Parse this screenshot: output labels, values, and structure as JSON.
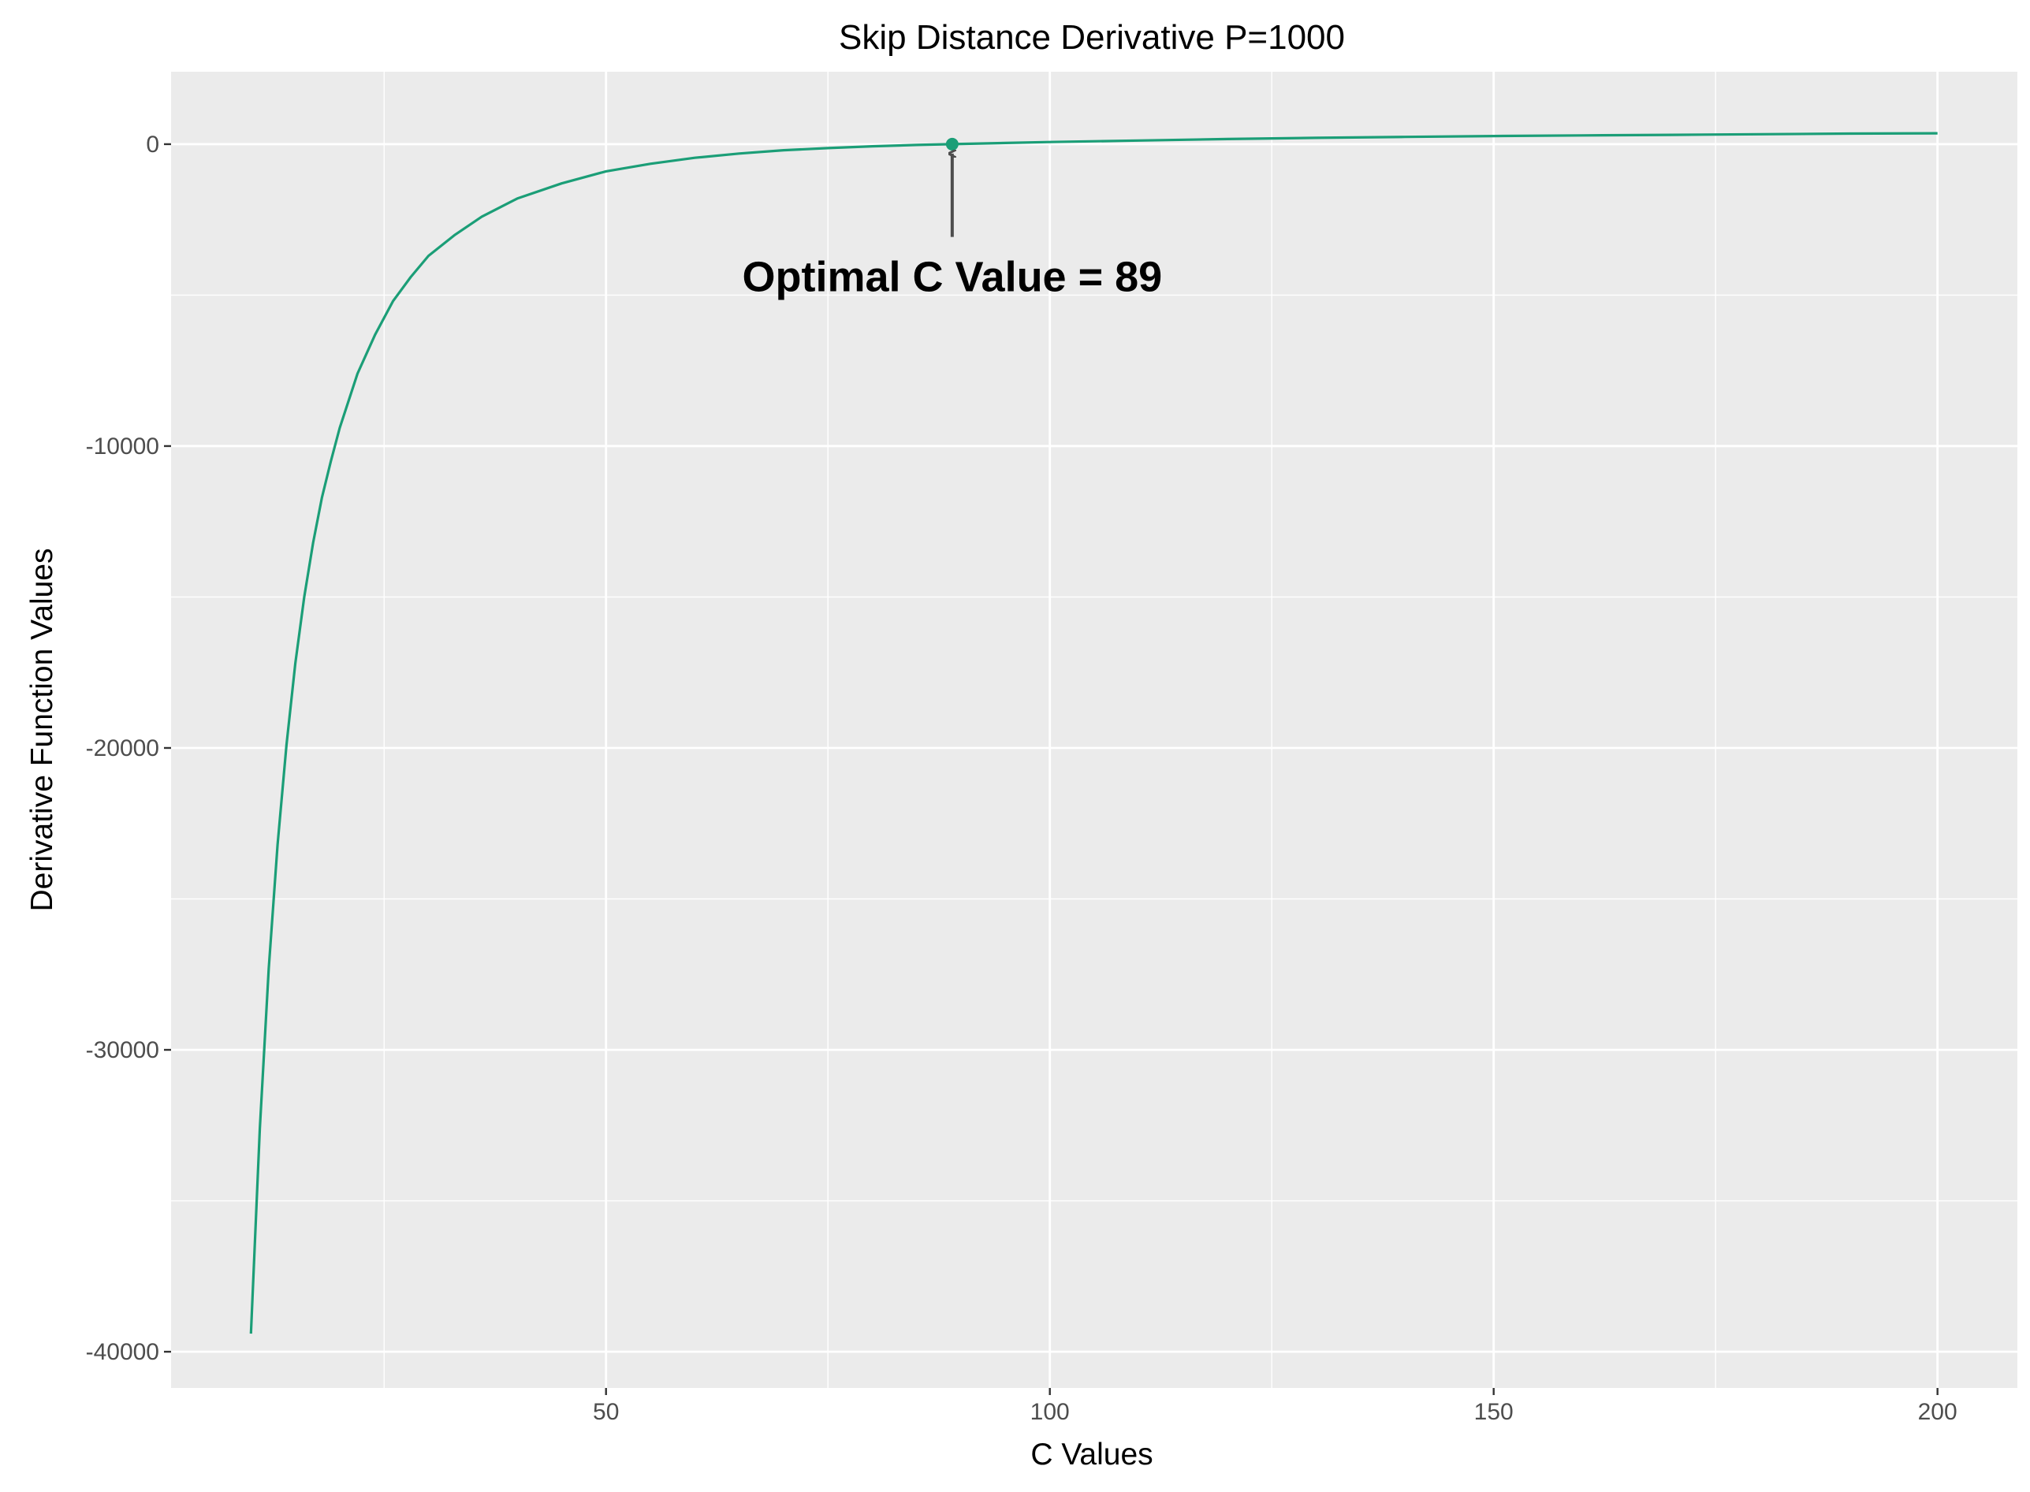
{
  "chart_data": {
    "type": "line",
    "title": "Skip Distance Derivative P=1000",
    "xlabel": "C Values",
    "ylabel": "Derivative Function Values",
    "xlim": [
      1,
      209
    ],
    "ylim": [
      -41200,
      2400
    ],
    "x_ticks": [
      50,
      100,
      150,
      200
    ],
    "y_ticks": [
      0,
      -10000,
      -20000,
      -30000,
      -40000
    ],
    "x_tick_labels": [
      "50",
      "100",
      "150",
      "200"
    ],
    "y_tick_labels": [
      "0",
      "-10000",
      "-20000",
      "-30000",
      "-40000"
    ],
    "grid": true,
    "legend": "none",
    "colors": {
      "line": "#1b9e77",
      "panel": "#ebebeb",
      "grid": "#ffffff",
      "arrow": "#4d4d4d"
    },
    "series": [
      {
        "x": [
          10,
          11,
          12,
          13,
          14,
          15,
          16,
          17,
          18,
          19,
          20,
          22,
          24,
          26,
          28,
          30,
          33,
          36,
          40,
          45,
          50,
          55,
          60,
          65,
          70,
          75,
          80,
          85,
          89,
          95,
          100,
          110,
          120,
          130,
          140,
          150,
          160,
          170,
          180,
          190,
          200
        ],
        "y": [
          -39400,
          -32600,
          -27300,
          -23200,
          -19900,
          -17200,
          -15000,
          -13200,
          -11700,
          -10500,
          -9400,
          -7600,
          -6300,
          -5200,
          -4400,
          -3700,
          -3000,
          -2400,
          -1800,
          -1300,
          -900,
          -650,
          -450,
          -310,
          -200,
          -130,
          -70,
          -25,
          0,
          40,
          70,
          120,
          170,
          210,
          240,
          270,
          290,
          310,
          330,
          350,
          360
        ]
      }
    ],
    "highlight_point": {
      "x": 89,
      "y": 0
    },
    "annotation": {
      "text": "Optimal C Value = 89",
      "x": 89,
      "y": -3700
    }
  }
}
